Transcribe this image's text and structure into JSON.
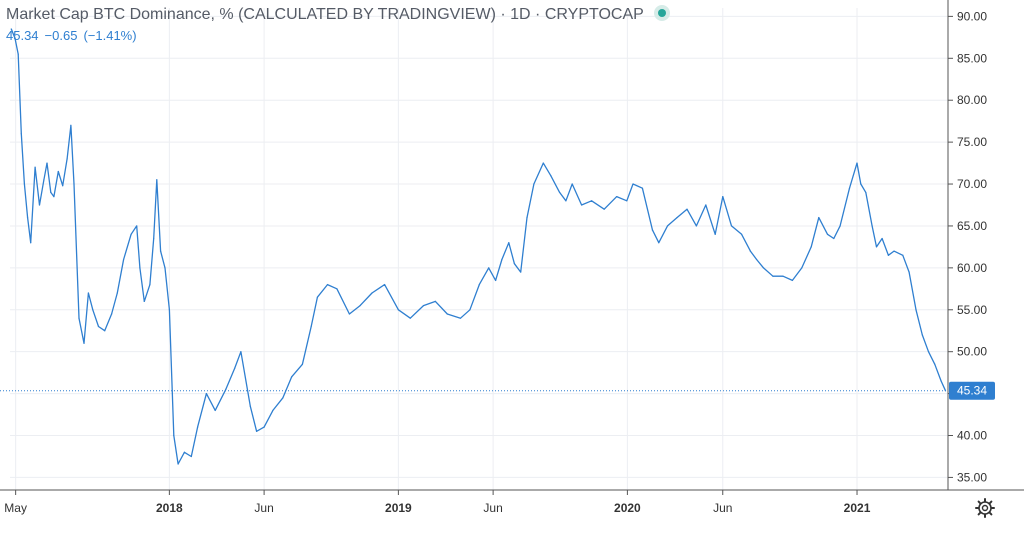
{
  "header": {
    "title": "Market Cap BTC Dominance, % (CALCULATED BY TRADINGVIEW)",
    "separator": "·",
    "interval": "1D",
    "exchange": "CRYPTOCAP",
    "last_value": "45.34",
    "change": "−0.65",
    "change_pct": "(−1.41%)"
  },
  "icons": {
    "status": "green-dot-icon",
    "settings": "gear-icon"
  },
  "colors": {
    "line": "#2f7fd0",
    "grid": "#eceef2",
    "status": "#26a69a",
    "price_label": "#2f7fd0"
  },
  "chart_data": {
    "type": "line",
    "title": "Market Cap BTC Dominance, % (CALCULATED BY TRADINGVIEW)",
    "xlabel": "",
    "ylabel": "",
    "ylim": [
      33.5,
      91
    ],
    "y_ticks": [
      "35.00",
      "40.00",
      "45.00",
      "50.00",
      "55.00",
      "60.00",
      "65.00",
      "70.00",
      "75.00",
      "80.00",
      "85.00",
      "90.00"
    ],
    "x_ticks": [
      {
        "label": "May",
        "date": "2017-05-01",
        "bold": false
      },
      {
        "label": "2018",
        "date": "2018-01-01",
        "bold": true
      },
      {
        "label": "Jun",
        "date": "2018-06-01",
        "bold": false
      },
      {
        "label": "2019",
        "date": "2019-01-01",
        "bold": true
      },
      {
        "label": "Jun",
        "date": "2019-06-01",
        "bold": false
      },
      {
        "label": "2020",
        "date": "2020-01-01",
        "bold": true
      },
      {
        "label": "Jun",
        "date": "2020-06-01",
        "bold": false
      },
      {
        "label": "2021",
        "date": "2021-01-01",
        "bold": true
      }
    ],
    "x_range": [
      "2017-04-22",
      "2021-05-26"
    ],
    "current_value": 45.34,
    "current_value_label": "45.34",
    "grid": true,
    "series": [
      {
        "x": [
          "2017-04-24",
          "2017-04-30",
          "2017-05-05",
          "2017-05-10",
          "2017-05-15",
          "2017-05-20",
          "2017-05-25",
          "2017-06-01",
          "2017-06-08",
          "2017-06-15",
          "2017-06-20",
          "2017-06-26",
          "2017-07-01",
          "2017-07-08",
          "2017-07-15",
          "2017-07-22",
          "2017-07-28",
          "2017-08-02",
          "2017-08-10",
          "2017-08-18",
          "2017-08-25",
          "2017-09-01",
          "2017-09-10",
          "2017-09-20",
          "2017-10-01",
          "2017-10-10",
          "2017-10-20",
          "2017-11-01",
          "2017-11-10",
          "2017-11-15",
          "2017-11-22",
          "2017-12-01",
          "2017-12-07",
          "2017-12-12",
          "2017-12-18",
          "2017-12-25",
          "2018-01-01",
          "2018-01-08",
          "2018-01-15",
          "2018-01-25",
          "2018-02-05",
          "2018-02-15",
          "2018-03-01",
          "2018-03-15",
          "2018-04-01",
          "2018-04-15",
          "2018-04-25",
          "2018-05-10",
          "2018-05-20",
          "2018-06-01",
          "2018-06-15",
          "2018-07-01",
          "2018-07-15",
          "2018-08-01",
          "2018-08-15",
          "2018-08-25",
          "2018-09-10",
          "2018-09-25",
          "2018-10-15",
          "2018-11-01",
          "2018-11-20",
          "2018-12-10",
          "2019-01-01",
          "2019-01-20",
          "2019-02-10",
          "2019-03-01",
          "2019-03-20",
          "2019-04-10",
          "2019-04-25",
          "2019-05-10",
          "2019-05-25",
          "2019-06-05",
          "2019-06-15",
          "2019-06-26",
          "2019-07-05",
          "2019-07-15",
          "2019-07-25",
          "2019-08-05",
          "2019-08-20",
          "2019-09-01",
          "2019-09-15",
          "2019-09-25",
          "2019-10-05",
          "2019-10-20",
          "2019-11-05",
          "2019-11-25",
          "2019-12-15",
          "2019-12-31",
          "2020-01-10",
          "2020-01-25",
          "2020-02-10",
          "2020-02-20",
          "2020-03-05",
          "2020-03-20",
          "2020-04-05",
          "2020-04-20",
          "2020-05-05",
          "2020-05-20",
          "2020-06-01",
          "2020-06-15",
          "2020-07-01",
          "2020-07-15",
          "2020-07-25",
          "2020-08-05",
          "2020-08-20",
          "2020-09-05",
          "2020-09-20",
          "2020-10-05",
          "2020-10-20",
          "2020-11-01",
          "2020-11-15",
          "2020-11-25",
          "2020-12-05",
          "2020-12-20",
          "2021-01-01",
          "2021-01-07",
          "2021-01-15",
          "2021-01-25",
          "2021-02-01",
          "2021-02-10",
          "2021-02-20",
          "2021-03-01",
          "2021-03-15",
          "2021-03-25",
          "2021-04-05",
          "2021-04-15",
          "2021-04-25",
          "2021-05-05",
          "2021-05-15",
          "2021-05-22"
        ],
        "values": [
          88.5,
          87.4,
          85.5,
          76.0,
          70.0,
          66.0,
          63.0,
          72.0,
          67.5,
          70.5,
          72.5,
          69.0,
          68.5,
          71.5,
          69.8,
          73.0,
          77.0,
          70.0,
          54.0,
          51.0,
          57.0,
          55.0,
          53.0,
          52.5,
          54.5,
          57.0,
          61.0,
          64.0,
          65.0,
          60.0,
          56.0,
          58.0,
          63.5,
          70.5,
          62.0,
          60.0,
          55.0,
          40.0,
          36.6,
          38.0,
          37.5,
          41.0,
          45.0,
          43.0,
          45.5,
          48.0,
          50.0,
          43.5,
          40.5,
          41.0,
          43.0,
          44.5,
          47.0,
          48.5,
          53.0,
          56.5,
          58.0,
          57.5,
          54.5,
          55.5,
          57.0,
          58.0,
          55.0,
          54.0,
          55.5,
          56.0,
          54.5,
          54.0,
          55.0,
          58.0,
          60.0,
          58.5,
          61.0,
          63.0,
          60.5,
          59.5,
          66.0,
          70.0,
          72.5,
          71.0,
          69.0,
          68.0,
          70.0,
          67.5,
          68.0,
          67.0,
          68.5,
          68.0,
          70.0,
          69.5,
          64.5,
          63.0,
          65.0,
          66.0,
          67.0,
          65.0,
          67.5,
          64.0,
          68.5,
          65.0,
          64.0,
          62.0,
          61.0,
          60.0,
          59.0,
          59.0,
          58.5,
          60.0,
          62.5,
          66.0,
          64.0,
          63.5,
          65.0,
          69.5,
          72.5,
          70.0,
          69.0,
          65.0,
          62.5,
          63.5,
          61.5,
          62.0,
          61.5,
          59.5,
          55.0,
          52.0,
          50.0,
          48.5,
          46.5,
          45.34
        ]
      }
    ]
  }
}
